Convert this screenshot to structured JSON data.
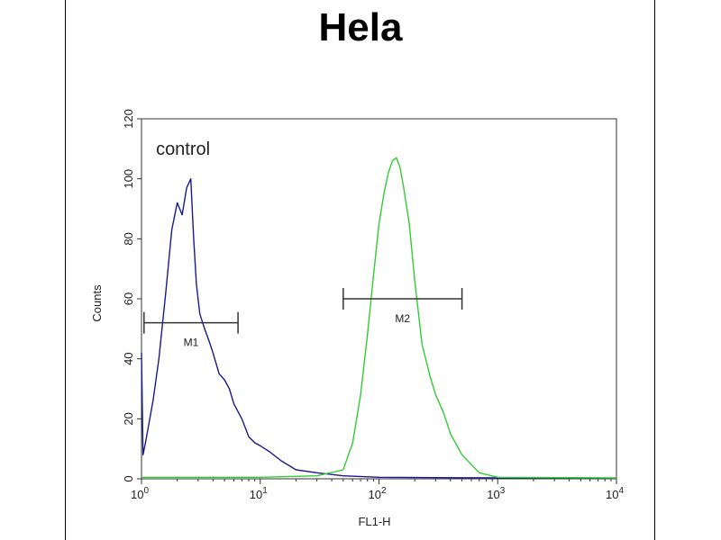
{
  "chart_data": {
    "type": "line",
    "title": "Hela",
    "xlabel": "FL1-H",
    "ylabel": "Counts",
    "x_scale": "log",
    "xlim": [
      1,
      10000
    ],
    "ylim": [
      0,
      120
    ],
    "x_ticks": [
      {
        "base": "10",
        "exp": "0"
      },
      {
        "base": "10",
        "exp": "1"
      },
      {
        "base": "10",
        "exp": "2"
      },
      {
        "base": "10",
        "exp": "3"
      },
      {
        "base": "10",
        "exp": "4"
      }
    ],
    "y_ticks": [
      "0",
      "20",
      "40",
      "60",
      "80",
      "100",
      "120"
    ],
    "y_tick_values": [
      0,
      20,
      40,
      60,
      80,
      100,
      120
    ],
    "series": [
      {
        "name": "control",
        "color": "#1a1a8c",
        "x": [
          1,
          1.03,
          1.08,
          1.15,
          1.25,
          1.4,
          1.6,
          1.8,
          2.0,
          2.2,
          2.4,
          2.6,
          2.75,
          2.9,
          3.1,
          3.4,
          3.7,
          4.0,
          4.5,
          5.0,
          5.5,
          6.0,
          7.0,
          8.0,
          9.0,
          10,
          12,
          15,
          20,
          30,
          50,
          100,
          1000,
          10000
        ],
        "y": [
          42,
          8,
          12,
          18,
          26,
          40,
          62,
          83,
          92,
          88,
          97,
          100,
          80,
          65,
          55,
          50,
          46,
          42,
          35,
          33,
          30,
          25,
          20,
          14,
          12,
          11,
          9,
          6,
          3,
          2,
          1,
          0.5,
          0.3,
          0.2
        ]
      },
      {
        "name": "",
        "color": "#33cc33",
        "x": [
          1,
          10,
          30,
          50,
          60,
          70,
          80,
          90,
          100,
          110,
          120,
          130,
          140,
          150,
          160,
          180,
          200,
          230,
          270,
          300,
          350,
          400,
          500,
          700,
          1000,
          10000
        ],
        "y": [
          0.5,
          0.5,
          1,
          3,
          12,
          28,
          48,
          68,
          85,
          95,
          102,
          106,
          107,
          104,
          98,
          85,
          66,
          45,
          34,
          28,
          22,
          15,
          8,
          2,
          0.5,
          0.3
        ]
      }
    ],
    "annotations": [
      {
        "label": "control",
        "x": 2.4,
        "y": 108
      },
      {
        "label": "M1",
        "x_range": [
          1.05,
          6.5
        ],
        "y": 52
      },
      {
        "label": "M2",
        "x_range": [
          50,
          500
        ],
        "y": 60
      }
    ]
  }
}
